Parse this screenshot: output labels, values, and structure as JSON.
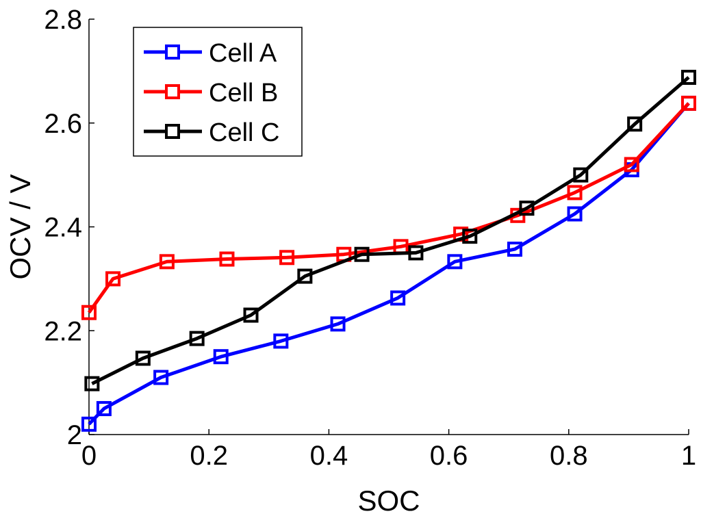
{
  "chart_data": {
    "type": "line",
    "title": "",
    "xlabel": "SOC",
    "ylabel": "OCV / V",
    "xlim": [
      0,
      1
    ],
    "ylim": [
      2,
      2.8
    ],
    "xticks": [
      "0",
      "0.2",
      "0.4",
      "0.6",
      "0.8",
      "1"
    ],
    "yticks": [
      "2",
      "2.2",
      "2.4",
      "2.6",
      "2.8"
    ],
    "grid": false,
    "legend_position": "top-left",
    "series": [
      {
        "name": "Cell A",
        "color": "#0000ff",
        "marker": "square",
        "x": [
          0,
          0.025,
          0.12,
          0.22,
          0.32,
          0.415,
          0.515,
          0.61,
          0.71,
          0.81,
          0.905,
          1
        ],
        "y": [
          2.02,
          2.05,
          2.11,
          2.15,
          2.18,
          2.213,
          2.263,
          2.333,
          2.357,
          2.425,
          2.51,
          2.638
        ]
      },
      {
        "name": "Cell B",
        "color": "#ff0000",
        "marker": "square",
        "x": [
          0,
          0.04,
          0.13,
          0.23,
          0.33,
          0.425,
          0.52,
          0.62,
          0.715,
          0.81,
          0.905,
          1
        ],
        "y": [
          2.235,
          2.3,
          2.333,
          2.338,
          2.341,
          2.347,
          2.362,
          2.386,
          2.422,
          2.466,
          2.52,
          2.638
        ]
      },
      {
        "name": "Cell C",
        "color": "#000000",
        "marker": "square",
        "x": [
          0.005,
          0.09,
          0.18,
          0.27,
          0.36,
          0.455,
          0.545,
          0.635,
          0.73,
          0.82,
          0.91,
          1
        ],
        "y": [
          2.098,
          2.147,
          2.185,
          2.23,
          2.305,
          2.347,
          2.35,
          2.382,
          2.436,
          2.5,
          2.598,
          2.688
        ]
      }
    ]
  }
}
